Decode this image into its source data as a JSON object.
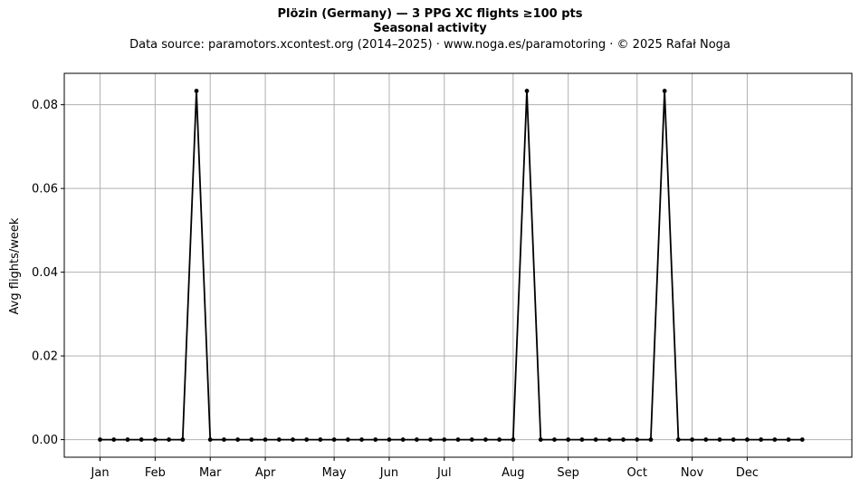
{
  "chart_data": {
    "type": "line",
    "title": "Plözin (Germany)  —  3 PPG XC flights ≥100 pts",
    "subtitle": "Seasonal activity",
    "source_note": "Data source: paramotors.xcontest.org (2014–2025)  ·  www.noga.es/paramotoring  ·  © 2025 Rafał Noga",
    "xlabel": "",
    "ylabel": "Avg flights/week",
    "x_unit": "week of year",
    "xlim": [
      -2.6,
      54.6
    ],
    "ylim": [
      -0.0042,
      0.0875
    ],
    "x_ticks": [
      {
        "label": "Jan",
        "x": 0
      },
      {
        "label": "Feb",
        "x": 4
      },
      {
        "label": "Mar",
        "x": 8
      },
      {
        "label": "Apr",
        "x": 12
      },
      {
        "label": "May",
        "x": 17
      },
      {
        "label": "Jun",
        "x": 21
      },
      {
        "label": "Jul",
        "x": 25
      },
      {
        "label": "Aug",
        "x": 30
      },
      {
        "label": "Sep",
        "x": 34
      },
      {
        "label": "Oct",
        "x": 39
      },
      {
        "label": "Nov",
        "x": 43
      },
      {
        "label": "Dec",
        "x": 47
      }
    ],
    "y_ticks": [
      0,
      0.02,
      0.04,
      0.06,
      0.08
    ],
    "grid": true,
    "series": [
      {
        "name": "",
        "color": "#000000",
        "marker": "circle",
        "x": [
          0,
          1,
          2,
          3,
          4,
          5,
          6,
          7,
          8,
          9,
          10,
          11,
          12,
          13,
          14,
          15,
          16,
          17,
          18,
          19,
          20,
          21,
          22,
          23,
          24,
          25,
          26,
          27,
          28,
          29,
          30,
          31,
          32,
          33,
          34,
          35,
          36,
          37,
          38,
          39,
          40,
          41,
          42,
          43,
          44,
          45,
          46,
          47,
          48,
          49,
          50,
          51
        ],
        "values": [
          0,
          0,
          0,
          0,
          0,
          0,
          0,
          0.0833,
          0,
          0,
          0,
          0,
          0,
          0,
          0,
          0,
          0,
          0,
          0,
          0,
          0,
          0,
          0,
          0,
          0,
          0,
          0,
          0,
          0,
          0,
          0,
          0.0833,
          0,
          0,
          0,
          0,
          0,
          0,
          0,
          0,
          0,
          0.0833,
          0,
          0,
          0,
          0,
          0,
          0,
          0,
          0,
          0,
          0
        ]
      }
    ]
  }
}
